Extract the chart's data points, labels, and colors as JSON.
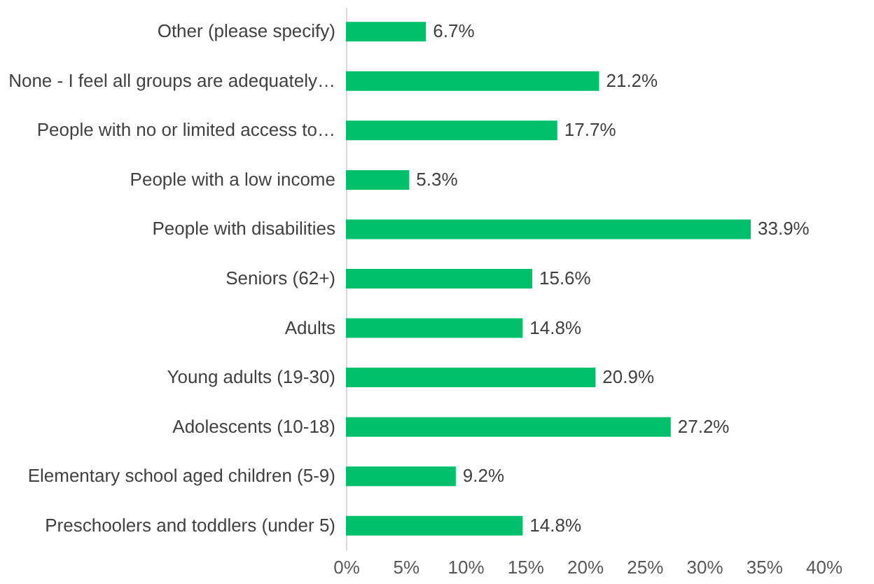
{
  "chart_data": {
    "type": "bar",
    "orientation": "horizontal",
    "categories": [
      "Other (please specify)",
      "None - I feel all groups are adequately…",
      "People with no or limited access to…",
      "People with a low income",
      "People with disabilities",
      "Seniors (62+)",
      "Adults",
      "Young adults (19-30)",
      "Adolescents (10-18)",
      "Elementary school aged children (5-9)",
      "Preschoolers and toddlers (under 5)"
    ],
    "values": [
      6.7,
      21.2,
      17.7,
      5.3,
      33.9,
      15.6,
      14.8,
      20.9,
      27.2,
      9.2,
      14.8
    ],
    "value_labels": [
      "6.7%",
      "21.2%",
      "17.7%",
      "5.3%",
      "33.9%",
      "15.6%",
      "14.8%",
      "20.9%",
      "27.2%",
      "9.2%",
      "14.8%"
    ],
    "color": "#00c06b",
    "xlim": [
      0,
      40
    ],
    "xticks": [
      {
        "value": 0,
        "label": "0%"
      },
      {
        "value": 5,
        "label": "5%"
      },
      {
        "value": 10,
        "label": "10%"
      },
      {
        "value": 15,
        "label": "15%"
      },
      {
        "value": 20,
        "label": "20%"
      },
      {
        "value": 25,
        "label": "25%"
      },
      {
        "value": 30,
        "label": "30%"
      },
      {
        "value": 35,
        "label": "35%"
      },
      {
        "value": 40,
        "label": "40%"
      }
    ],
    "grid": false
  }
}
